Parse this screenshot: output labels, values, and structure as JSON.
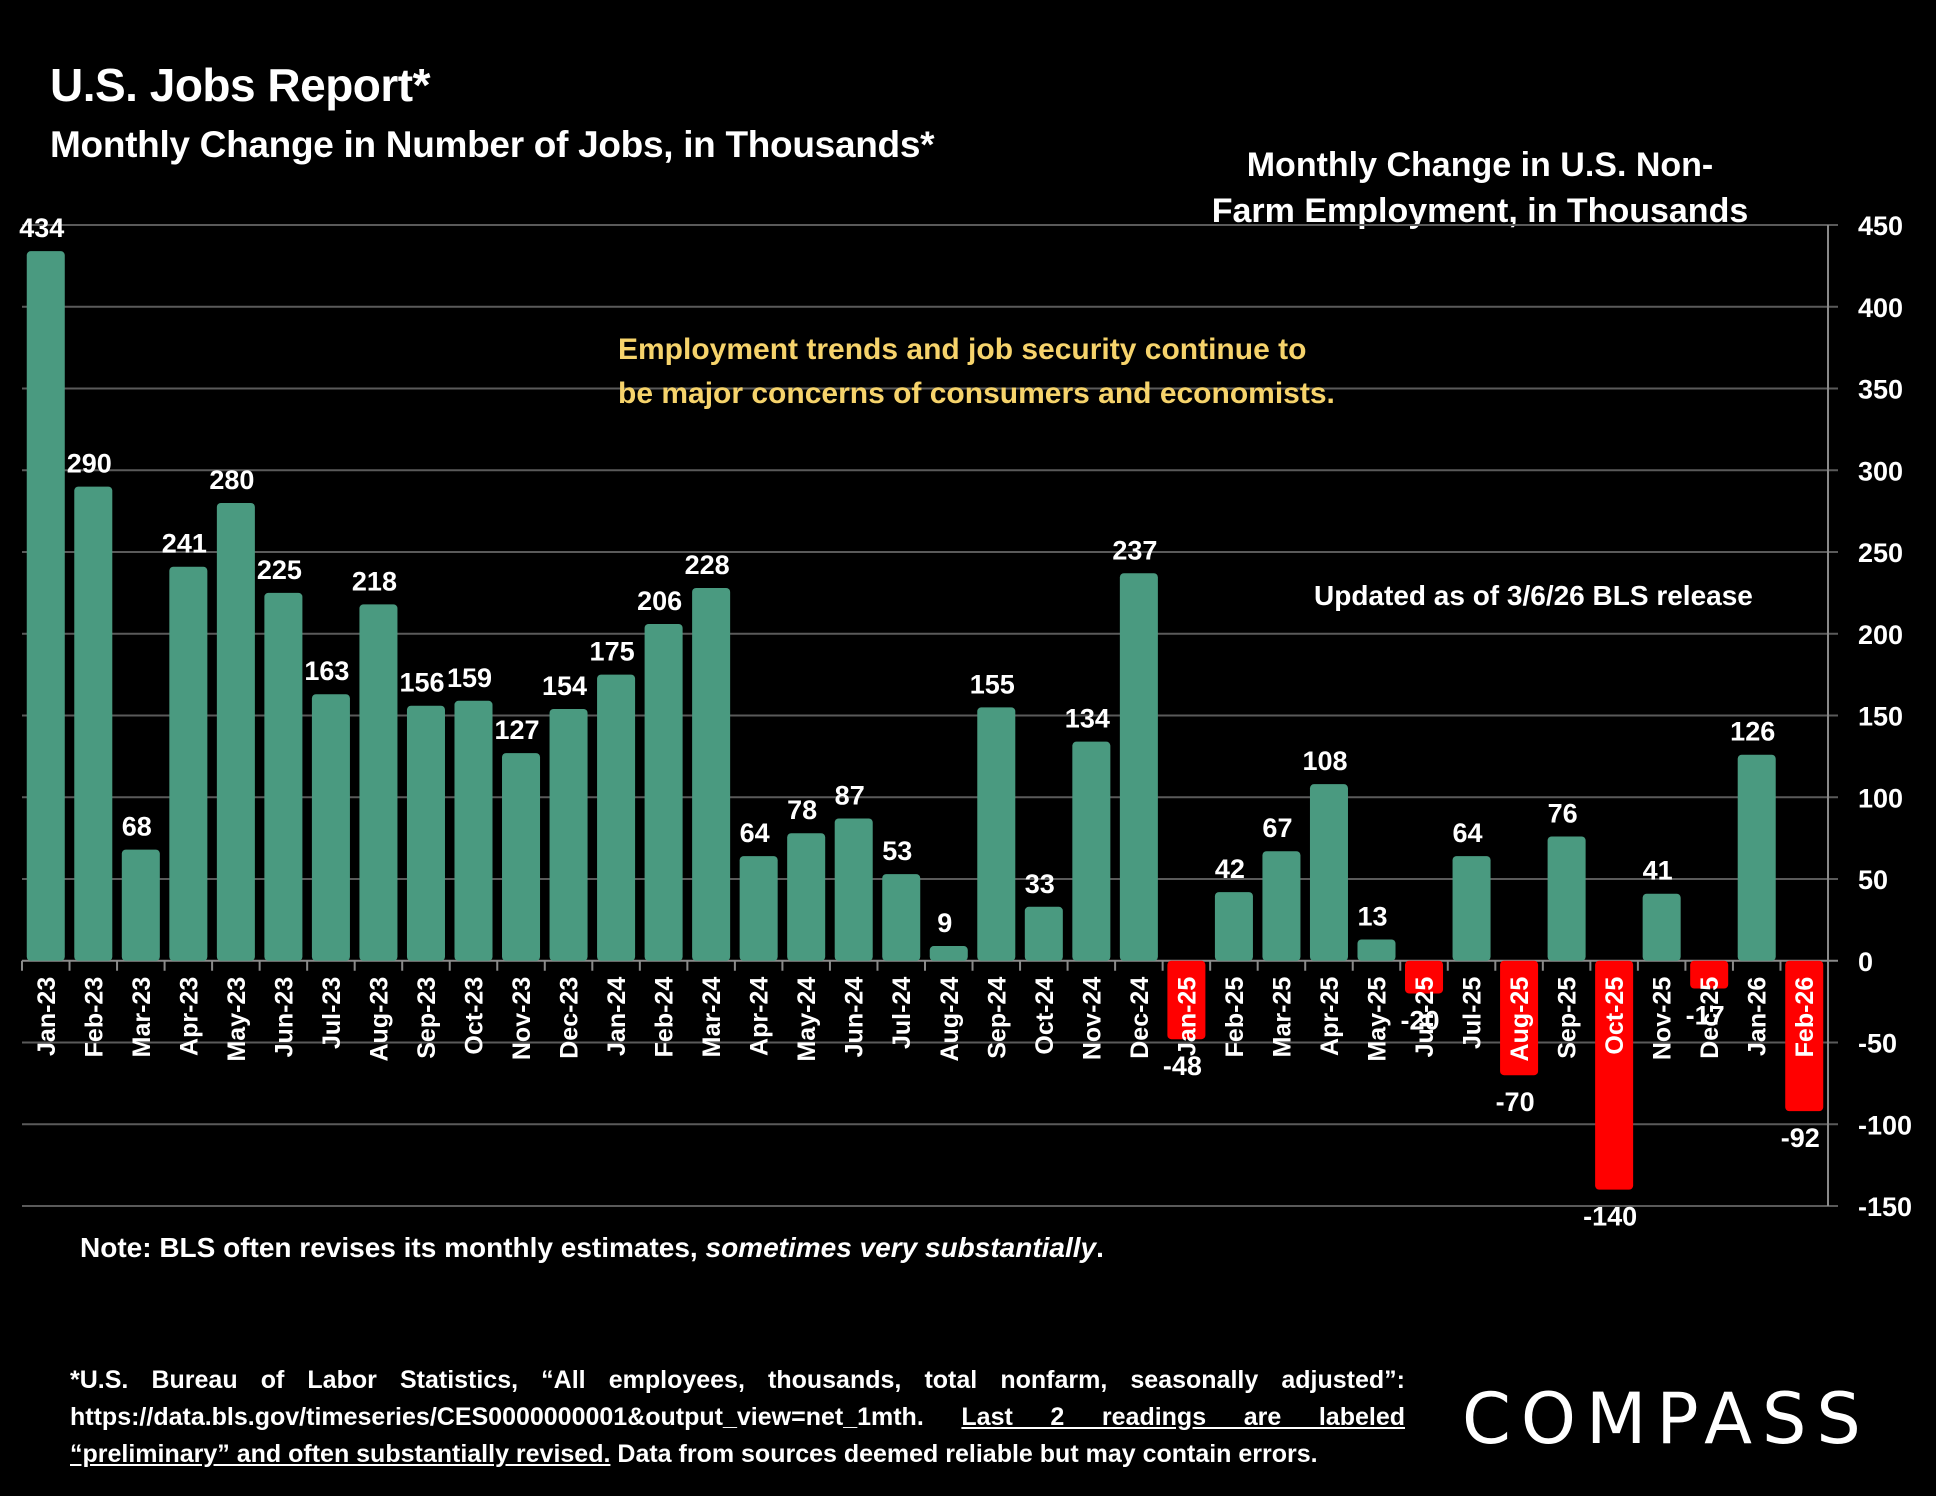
{
  "header": {
    "title": "U.S. Jobs Report*",
    "subtitle": "Monthly Change in Number of Jobs, in Thousands*"
  },
  "annotation_lines": [
    "Employment trends and job security continue to",
    "be major concerns of consumers and economists."
  ],
  "updated_note": "Updated as of 3/6/26 BLS release",
  "note": {
    "prefix": "Note: BLS often revises its monthly estimates, ",
    "italic": "sometimes very substantially",
    "suffix": "."
  },
  "source": {
    "part1": "*U.S. Bureau of Labor Statistics, “All employees, thousands, total nonfarm, seasonally adjusted”: https://data.bls.gov/timeseries/CES0000000001&output_view=net_1mth. ",
    "underlined": "Last 2 readings are labeled “preliminary” and often substantially revised.",
    "part2": " Data from sources deemed reliable but may contain errors."
  },
  "logo": "COMPASS",
  "colors": {
    "positive": "#4a9a80",
    "negative": "#ff0000",
    "annotation": "#f6d36b",
    "grid": "#5a5a5a",
    "background": "#000000"
  },
  "chart_data": {
    "type": "bar",
    "title": "Monthly Change in U.S. Non-Farm Employment, in Thousands",
    "title_lines": [
      "Monthly Change in U.S. Non-",
      "Farm Employment, in Thousands"
    ],
    "xlabel": "",
    "ylabel": "",
    "ylim": [
      -150,
      450
    ],
    "yticks": [
      450,
      400,
      350,
      300,
      250,
      200,
      150,
      100,
      50,
      0,
      -50,
      -100,
      -150
    ],
    "y_axis_side": "right",
    "grid": true,
    "legend": "none",
    "categories": [
      "Jan-23",
      "Feb-23",
      "Mar-23",
      "Apr-23",
      "May-23",
      "Jun-23",
      "Jul-23",
      "Aug-23",
      "Sep-23",
      "Oct-23",
      "Nov-23",
      "Dec-23",
      "Jan-24",
      "Feb-24",
      "Mar-24",
      "Apr-24",
      "May-24",
      "Jun-24",
      "Jul-24",
      "Aug-24",
      "Sep-24",
      "Oct-24",
      "Nov-24",
      "Dec-24",
      "Jan-25",
      "Feb-25",
      "Mar-25",
      "Apr-25",
      "May-25",
      "Jun-25",
      "Jul-25",
      "Aug-25",
      "Sep-25",
      "Oct-25",
      "Nov-25",
      "Dec-25",
      "Jan-26",
      "Feb-26"
    ],
    "values": [
      434,
      290,
      68,
      241,
      280,
      225,
      163,
      218,
      156,
      159,
      127,
      154,
      175,
      206,
      228,
      64,
      78,
      87,
      53,
      9,
      155,
      33,
      134,
      237,
      -48,
      42,
      67,
      108,
      13,
      -20,
      64,
      -70,
      76,
      -140,
      41,
      -17,
      126,
      -92
    ]
  }
}
